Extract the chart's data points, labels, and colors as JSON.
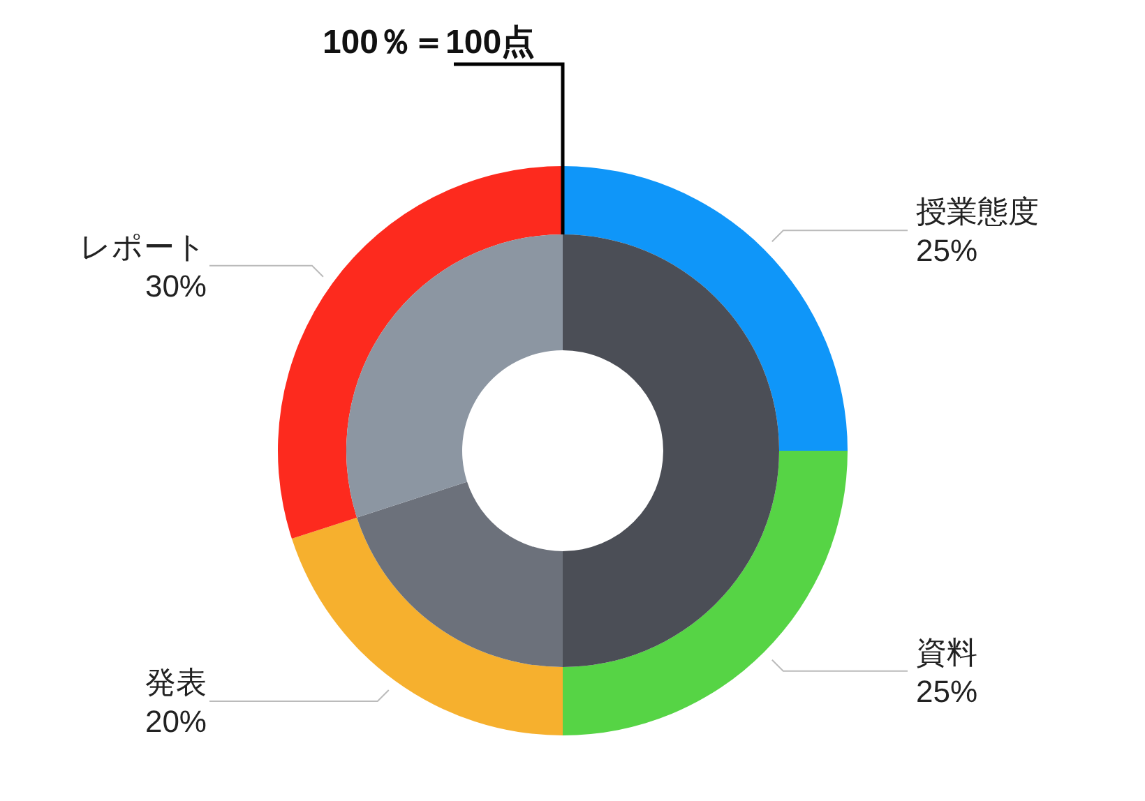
{
  "chart_data": {
    "type": "donut",
    "title": "100％＝100点",
    "categories": [
      "授業態度",
      "資料",
      "発表",
      "レポート"
    ],
    "series": [
      {
        "values": [
          25,
          25,
          20,
          30
        ],
        "colors": [
          "#0f96f9",
          "#56d445",
          "#f6b02e",
          "#fd2a1e"
        ],
        "value_labels": [
          "25%",
          "25%",
          "20%",
          "30%"
        ]
      },
      {
        "values": [
          25,
          25,
          20,
          30
        ],
        "colors": [
          "#4b4e56",
          "#4b4e56",
          "#6c717b",
          "#8c96a2"
        ]
      }
    ]
  }
}
